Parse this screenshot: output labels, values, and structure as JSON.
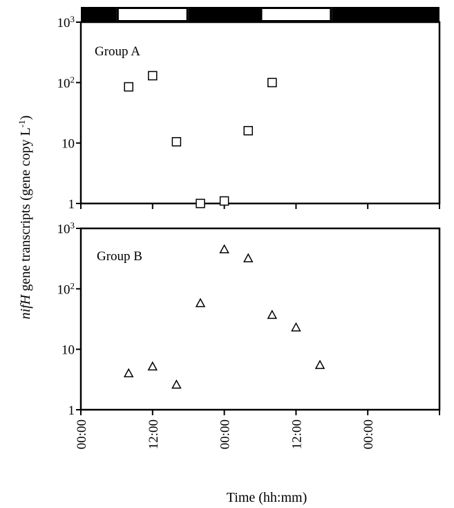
{
  "chart_data": [
    {
      "type": "scatter",
      "panel_label": "Group A",
      "marker": "square",
      "yscale": "log",
      "ylim": [
        1,
        1000
      ],
      "y_tick_labels": [
        {
          "base": "1",
          "exp": ""
        },
        {
          "base": "10",
          "exp": ""
        },
        {
          "base": "10",
          "exp": "2"
        },
        {
          "base": "10",
          "exp": "3"
        }
      ],
      "xlim_hours": [
        0,
        60
      ],
      "x_tick_hours": [
        0,
        12,
        24,
        36,
        48,
        60
      ],
      "light_dark_bar": {
        "segments": [
          {
            "start_h": 0,
            "end_h": 6,
            "phase": "dark"
          },
          {
            "start_h": 6,
            "end_h": 18,
            "phase": "light"
          },
          {
            "start_h": 18,
            "end_h": 30,
            "phase": "dark"
          },
          {
            "start_h": 30,
            "end_h": 42,
            "phase": "light"
          },
          {
            "start_h": 42,
            "end_h": 60,
            "phase": "dark"
          }
        ],
        "dark_color": "#000000",
        "light_color": "#ffffff"
      },
      "points": [
        {
          "x_h": 8,
          "y": 85
        },
        {
          "x_h": 12,
          "y": 130
        },
        {
          "x_h": 16,
          "y": 10.5
        },
        {
          "x_h": 20,
          "y": 1.0
        },
        {
          "x_h": 24,
          "y": 1.1
        },
        {
          "x_h": 28,
          "y": 16
        },
        {
          "x_h": 32,
          "y": 100
        }
      ]
    },
    {
      "type": "scatter",
      "panel_label": "Group B",
      "marker": "triangle",
      "yscale": "log",
      "ylim": [
        1,
        1000
      ],
      "y_tick_labels": [
        {
          "base": "1",
          "exp": ""
        },
        {
          "base": "10",
          "exp": ""
        },
        {
          "base": "10",
          "exp": "2"
        },
        {
          "base": "10",
          "exp": "3"
        }
      ],
      "xlim_hours": [
        0,
        60
      ],
      "x_tick_hours": [
        0,
        12,
        24,
        36,
        48,
        60
      ],
      "x_tick_labels": [
        "00:00",
        "12:00",
        "00:00",
        "12:00",
        "00:00"
      ],
      "x_tick_label_hours": [
        0,
        12,
        24,
        36,
        48
      ],
      "points": [
        {
          "x_h": 8,
          "y": 4
        },
        {
          "x_h": 12,
          "y": 5.2
        },
        {
          "x_h": 16,
          "y": 2.6
        },
        {
          "x_h": 20,
          "y": 58
        },
        {
          "x_h": 24,
          "y": 450
        },
        {
          "x_h": 28,
          "y": 320
        },
        {
          "x_h": 32,
          "y": 37
        },
        {
          "x_h": 36,
          "y": 23
        },
        {
          "x_h": 40,
          "y": 5.5
        }
      ]
    }
  ],
  "ylabel": {
    "italic": "nifH",
    "text": " gene transcripts (gene copy L",
    "sup": "-1",
    "close": ")"
  },
  "xlabel": "Time (hh:mm)"
}
